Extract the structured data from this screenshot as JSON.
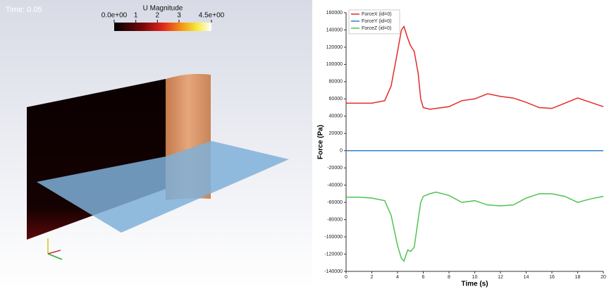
{
  "render_view": {
    "time_label": "Time: 0.05",
    "colorbar": {
      "title": "U Magnitude",
      "lim": [
        0,
        4.5
      ],
      "ticks": [
        {
          "value": 0,
          "label": "0.0e+00"
        },
        1,
        2,
        3,
        {
          "value": 4.5,
          "label": "4.5e+00"
        }
      ]
    }
  },
  "chart_data": {
    "type": "line",
    "xlabel": "Time (s)",
    "ylabel": "Force (Pa)",
    "x": [
      0,
      1,
      2,
      3,
      3.5,
      4,
      4.3,
      4.5,
      4.8,
      5,
      5.3,
      5.6,
      5.8,
      6,
      6.5,
      7,
      8,
      9,
      10,
      11,
      12,
      13,
      14,
      15,
      16,
      17,
      18,
      19,
      20
    ],
    "series": [
      {
        "name": "ForceX (id=0)",
        "color": "#e32a2a",
        "values": [
          55000,
          55000,
          55000,
          58000,
          75000,
          115000,
          140000,
          144000,
          130000,
          122000,
          115000,
          90000,
          60000,
          50000,
          48000,
          49000,
          51000,
          58000,
          60000,
          66000,
          63000,
          61000,
          56000,
          50000,
          49000,
          55000,
          61000,
          56000,
          51000
        ]
      },
      {
        "name": "ForceY (id=0)",
        "color": "#2f7fd1",
        "values": [
          0,
          0,
          0,
          0,
          0,
          0,
          0,
          0,
          0,
          0,
          0,
          0,
          0,
          0,
          0,
          0,
          0,
          0,
          0,
          0,
          0,
          0,
          0,
          0,
          0,
          0,
          0,
          0,
          0
        ]
      },
      {
        "name": "ForceZ (id=0)",
        "color": "#4fc44f",
        "values": [
          -54000,
          -54000,
          -55000,
          -58000,
          -75000,
          -110000,
          -125000,
          -128000,
          -115000,
          -117000,
          -112000,
          -80000,
          -60000,
          -53000,
          -50000,
          -48000,
          -52000,
          -60000,
          -58000,
          -63000,
          -64000,
          -63000,
          -55000,
          -50000,
          -50000,
          -53000,
          -60000,
          -56000,
          -53000
        ]
      }
    ],
    "xlim": [
      0,
      20
    ],
    "xticks": [
      0,
      2,
      4,
      6,
      8,
      10,
      12,
      14,
      16,
      18,
      20
    ],
    "ylim": [
      -140000,
      160000
    ],
    "yticks": [
      -140000,
      -120000,
      -100000,
      -80000,
      -60000,
      -40000,
      -20000,
      0,
      20000,
      40000,
      60000,
      80000,
      100000,
      120000,
      140000,
      160000
    ],
    "grid": false,
    "legend": "top-left"
  }
}
